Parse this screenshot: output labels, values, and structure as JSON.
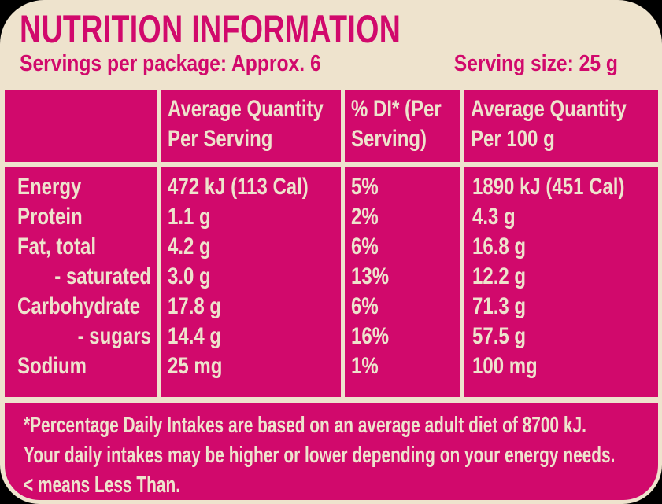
{
  "header": {
    "title": "NUTRITION INFORMATION",
    "servings_per_package": "Servings per package: Approx. 6",
    "serving_size": "Serving size: 25 g"
  },
  "table": {
    "column_headers": [
      {
        "line1": "",
        "line2": ""
      },
      {
        "line1": "Average Quantity",
        "line2": "Per Serving"
      },
      {
        "line1": "% DI* (Per",
        "line2": "Serving)"
      },
      {
        "line1": "Average Quantity",
        "line2": "Per 100 g"
      }
    ],
    "rows": [
      {
        "nutrient": "Energy",
        "per_serving": "472 kJ (113 Cal)",
        "di": "5%",
        "per_100g": "1890 kJ (451 Cal)"
      },
      {
        "nutrient": "Protein",
        "per_serving": "1.1 g",
        "di": "2%",
        "per_100g": "4.3 g"
      },
      {
        "nutrient": "Fat, total",
        "per_serving": "4.2 g",
        "di": "6%",
        "per_100g": "16.8 g"
      },
      {
        "nutrient": "- saturated",
        "per_serving": "3.0 g",
        "di": "13%",
        "per_100g": "12.2 g"
      },
      {
        "nutrient": "Carbohydrate",
        "per_serving": "17.8 g",
        "di": "6%",
        "per_100g": "71.3 g"
      },
      {
        "nutrient": "- sugars",
        "per_serving": "14.4 g",
        "di": "16%",
        "per_100g": "57.5 g"
      },
      {
        "nutrient": "Sodium",
        "per_serving": "25 mg",
        "di": "1%",
        "per_100g": "100 mg"
      }
    ]
  },
  "footnote": {
    "line1": "*Percentage Daily Intakes are based on an average adult diet of 8700 kJ.",
    "line2": "Your daily intakes may be higher or lower depending on your energy needs.",
    "line3": "< means Less Than."
  },
  "colors": {
    "pink": "#D1096C",
    "cream": "#EEE3CD",
    "outside_background": "#000000"
  }
}
